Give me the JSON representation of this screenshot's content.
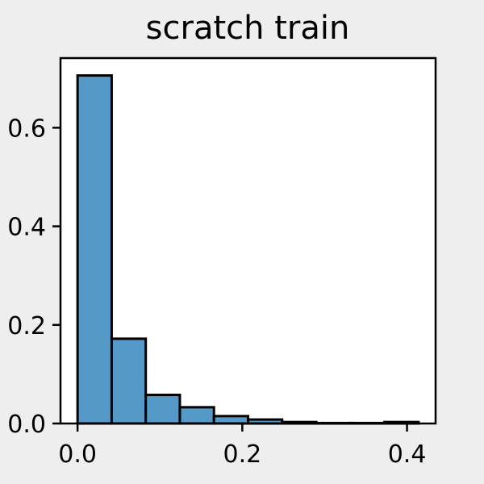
{
  "chart_data": {
    "type": "bar",
    "title": "scratch train",
    "xlabel": "",
    "ylabel": "",
    "xlim": [
      -0.0207,
      0.4347
    ],
    "ylim": [
      0,
      0.7413
    ],
    "x_ticks": [
      0.0,
      0.2,
      0.4
    ],
    "x_tick_labels": [
      "0.0",
      "0.2",
      "0.4"
    ],
    "y_ticks": [
      0.0,
      0.2,
      0.4,
      0.6
    ],
    "y_tick_labels": [
      "0.0",
      "0.2",
      "0.4",
      "0.6"
    ],
    "bin_edges": [
      0.0,
      0.0414,
      0.0828,
      0.1242,
      0.1656,
      0.207,
      0.2484,
      0.2898,
      0.3312,
      0.3726,
      0.414
    ],
    "values": [
      0.706,
      0.172,
      0.058,
      0.033,
      0.015,
      0.008,
      0.003,
      0.001,
      0.001,
      0.003
    ],
    "bar_color": "#5499c7",
    "edge_color": "#000000",
    "grid": false
  }
}
